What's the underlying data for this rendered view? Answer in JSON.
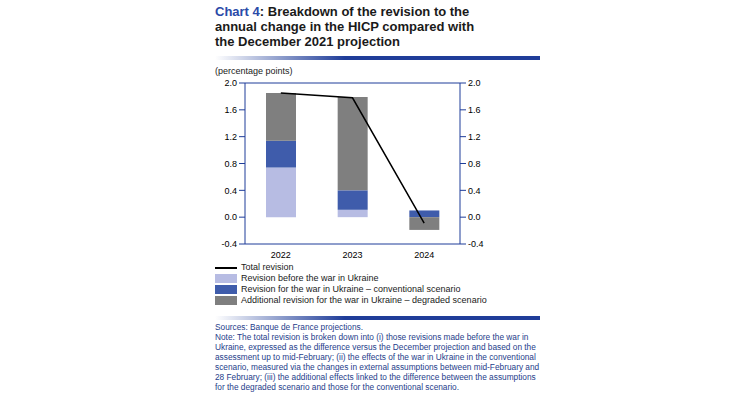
{
  "chart_data": {
    "type": "bar",
    "title": "Chart 4: Breakdown of the revision to the annual change in the HICP compared with the December 2021 projection",
    "subtitle": "(percentage points)",
    "categories": [
      "2022",
      "2023",
      "2024"
    ],
    "stacked": true,
    "grid": false,
    "legend": "bottom",
    "series": [
      {
        "name": "Total revision",
        "type": "line",
        "color": "#000000",
        "values": [
          1.85,
          1.78,
          -0.09
        ]
      },
      {
        "name": "Revision before the war in Ukraine",
        "type": "bar",
        "color": "#b7bce3",
        "values": [
          0.74,
          0.11,
          0.0
        ]
      },
      {
        "name": "Revision for the war in Ukraine – conventional scenario",
        "type": "bar",
        "color": "#3f5cab",
        "values": [
          0.4,
          0.29,
          0.1
        ]
      },
      {
        "name": "Additional revision for the war in Ukraine – degraded scenario",
        "type": "bar",
        "color": "#7f7f7f",
        "values": [
          0.71,
          1.39,
          -0.19
        ]
      }
    ],
    "ylim": [
      -0.4,
      2.0
    ],
    "yticks": [
      -0.4,
      {
        "value": 0,
        "label": "0.0"
      },
      0.4,
      0.8,
      1.2,
      1.6,
      {
        "value": 2,
        "label": "2.0"
      }
    ],
    "y2lim": [
      -0.4,
      2.0
    ],
    "y2ticks": [
      -0.4,
      {
        "value": 0,
        "label": "0.0"
      },
      0.4,
      0.8,
      1.2,
      1.6,
      {
        "value": 2,
        "label": "2.0"
      }
    ],
    "sources": "Sources: Banque de France projections.",
    "note": "Note: The total revision is broken down into (i) those revisions made before the war in Ukraine, expressed as the difference versus the December projection and based on the assessment up to mid-February; (ii) the effects of the war in Ukraine in the conventional scenario, measured via the changes in external assumptions between mid-February and 28 February; (iii) the additional effects linked to the difference between the assumptions for the degraded scenario and those for the conventional scenario."
  }
}
